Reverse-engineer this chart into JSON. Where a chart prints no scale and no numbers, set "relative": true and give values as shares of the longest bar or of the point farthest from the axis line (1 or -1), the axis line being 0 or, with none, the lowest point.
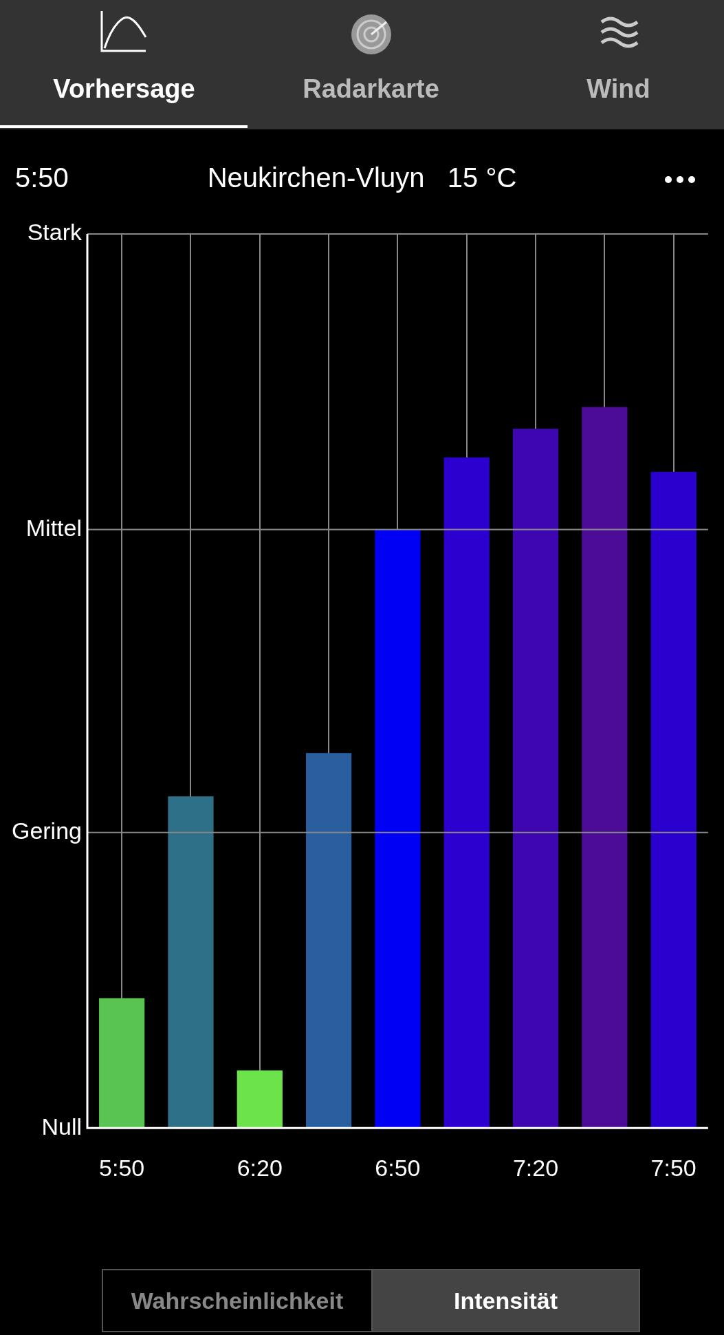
{
  "chart_data": {
    "type": "bar",
    "title": "Neukirchen-Vluyn   15 °C",
    "subtitle": "5:50",
    "annotations": [
      "Vorhersage",
      "Radarkarte",
      "Wind",
      "Wahrscheinlichkeit",
      "Intensität",
      "Null"
    ],
    "categories": [
      "5:50",
      null,
      "6:20",
      null,
      "6:50",
      null,
      "7:20",
      null,
      "7:50"
    ],
    "values": [
      0.18,
      0.46,
      0.08,
      0.52,
      0.83,
      0.93,
      0.97,
      1,
      0.91
    ],
    "relative": true,
    "colors": [
      "#5ac453",
      "#2f7089",
      "#6ce34b",
      "#2a5f9f",
      "#0000f5",
      "#2c00cf",
      "#3d06b0",
      "#4d0c98",
      "#2a00cf"
    ],
    "ref_lines": [
      {
        "axis": "y",
        "value": 0.41,
        "label": "Gering",
        "color": "#888888"
      },
      {
        "axis": "y",
        "value": 0.83,
        "label": "Mittel",
        "color": "#888888"
      },
      {
        "axis": "y",
        "value": 1.24,
        "label": "Stark",
        "color": "#888888"
      }
    ],
    "grid": "x"
  }
}
